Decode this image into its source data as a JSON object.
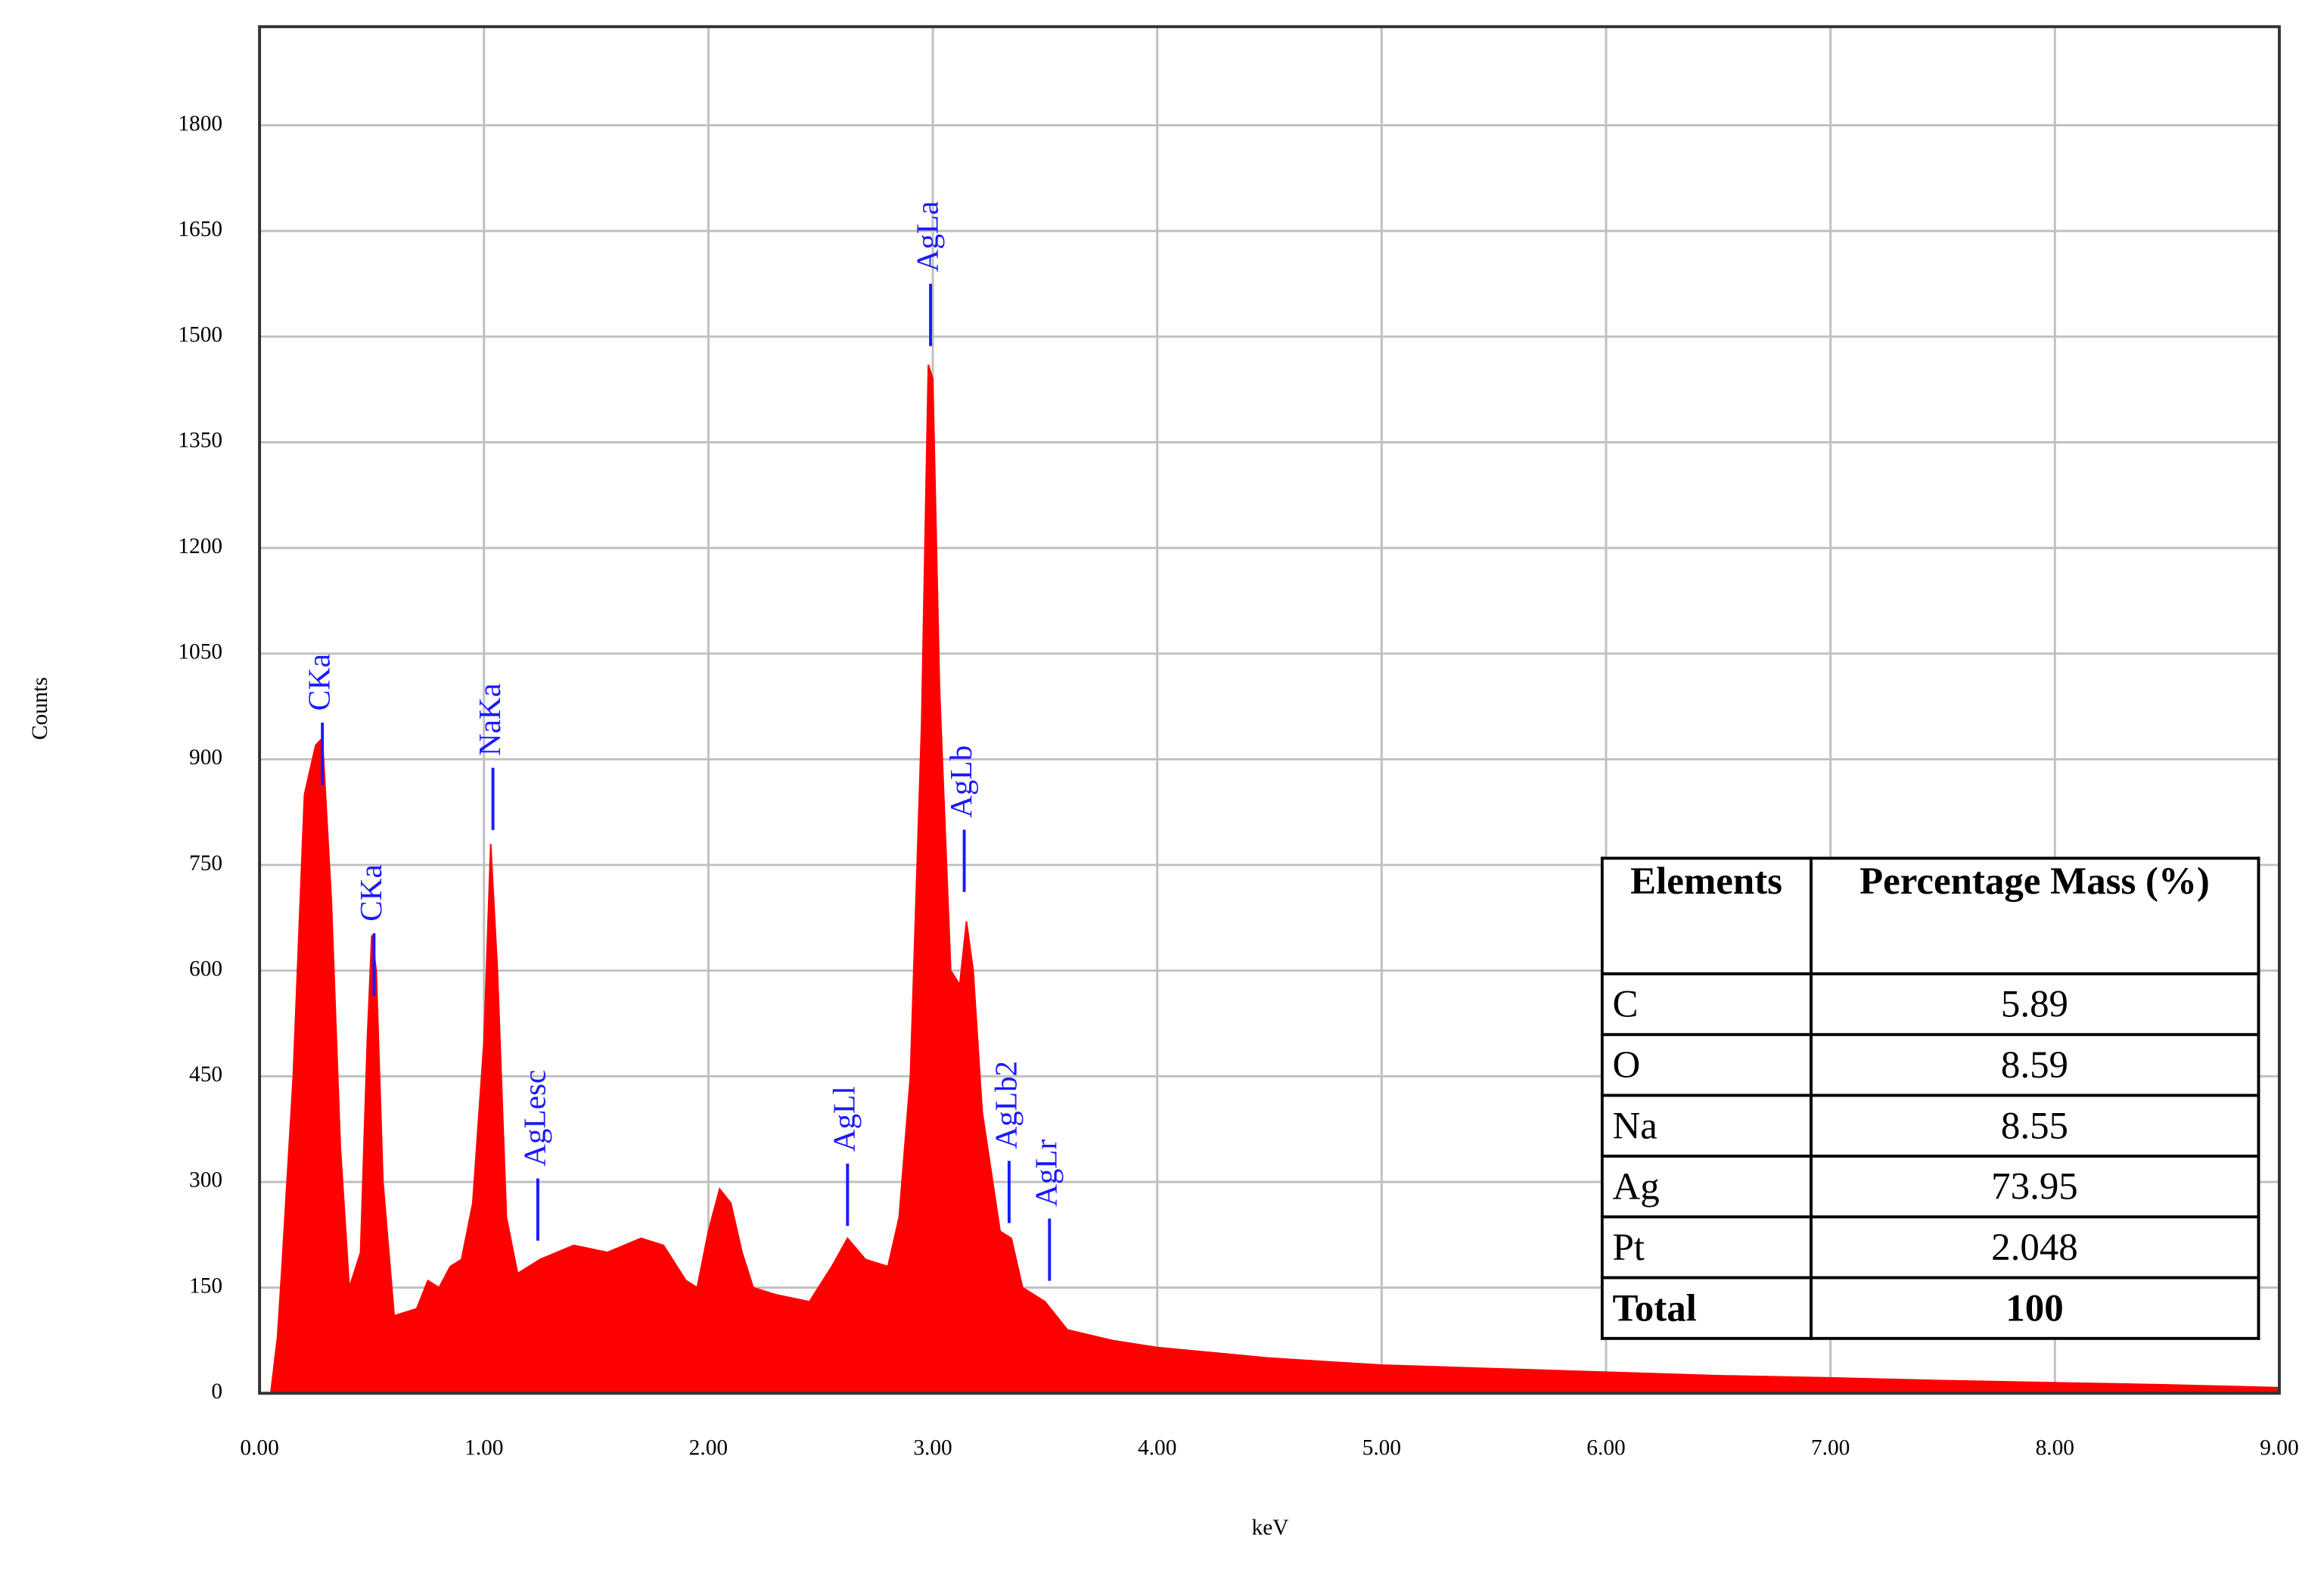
{
  "chart_data": {
    "type": "area",
    "x_label": "keV",
    "y_label": "Counts",
    "color": "#ff0000",
    "grid": true,
    "xlim": [
      0,
      9
    ],
    "ylim": [
      0,
      1940
    ],
    "xticks": [
      {
        "value": 0,
        "label": "0.00"
      },
      {
        "value": 1,
        "label": "1.00"
      },
      {
        "value": 2,
        "label": "2.00"
      },
      {
        "value": 3,
        "label": "3.00"
      },
      {
        "value": 4,
        "label": "4.00"
      },
      {
        "value": 5,
        "label": "5.00"
      },
      {
        "value": 6,
        "label": "6.00"
      },
      {
        "value": 7,
        "label": "7.00"
      },
      {
        "value": 8,
        "label": "8.00"
      },
      {
        "value": 9,
        "label": "9.00"
      }
    ],
    "yticks": [
      0,
      150,
      300,
      450,
      600,
      750,
      900,
      1050,
      1200,
      1350,
      1500,
      1650,
      1800
    ],
    "x": [
      0.0,
      0.05,
      0.08,
      0.1,
      0.15,
      0.2,
      0.25,
      0.28,
      0.32,
      0.36,
      0.4,
      0.45,
      0.48,
      0.5,
      0.52,
      0.55,
      0.6,
      0.7,
      0.75,
      0.8,
      0.85,
      0.9,
      0.95,
      1.0,
      1.03,
      1.06,
      1.1,
      1.15,
      1.25,
      1.4,
      1.55,
      1.7,
      1.8,
      1.9,
      1.95,
      2.0,
      2.05,
      2.1,
      2.15,
      2.2,
      2.3,
      2.45,
      2.55,
      2.62,
      2.7,
      2.8,
      2.85,
      2.9,
      2.95,
      2.98,
      3.0,
      3.03,
      3.08,
      3.12,
      3.15,
      3.18,
      3.22,
      3.3,
      3.35,
      3.4,
      3.5,
      3.6,
      3.8,
      4.0,
      4.5,
      5.0,
      5.5,
      6.0,
      6.5,
      7.0,
      7.5,
      8.0,
      8.5,
      9.0
    ],
    "values": [
      0,
      0,
      80,
      180,
      450,
      850,
      920,
      930,
      700,
      350,
      150,
      200,
      500,
      650,
      600,
      300,
      110,
      120,
      160,
      150,
      180,
      190,
      270,
      500,
      780,
      600,
      250,
      170,
      190,
      210,
      200,
      220,
      210,
      160,
      150,
      230,
      290,
      270,
      200,
      150,
      140,
      130,
      180,
      220,
      190,
      180,
      250,
      450,
      950,
      1460,
      1440,
      1000,
      600,
      580,
      670,
      600,
      400,
      230,
      220,
      150,
      130,
      90,
      75,
      65,
      50,
      40,
      35,
      30,
      25,
      22,
      18,
      15,
      12,
      8
    ],
    "annotations": [
      {
        "text": "CKa",
        "x": 0.28,
        "y": 952
      },
      {
        "text": "CKa",
        "x": 0.51,
        "y": 653
      },
      {
        "text": "NaKa",
        "x": 1.04,
        "y": 888
      },
      {
        "text": "AgLesc",
        "x": 1.24,
        "y": 305
      },
      {
        "text": "AgLl",
        "x": 2.62,
        "y": 326
      },
      {
        "text": "AgLa",
        "x": 2.99,
        "y": 1575
      },
      {
        "text": "AgLb",
        "x": 3.14,
        "y": 800
      },
      {
        "text": "AgLb2",
        "x": 3.34,
        "y": 330
      },
      {
        "text": "AgLr",
        "x": 3.52,
        "y": 248
      }
    ],
    "table": {
      "header": [
        "Elements",
        "Percentage Mass (%)"
      ],
      "rows": [
        [
          "C",
          "5.89"
        ],
        [
          "O",
          "8.59"
        ],
        [
          "Na",
          "8.55"
        ],
        [
          "Ag",
          "73.95"
        ],
        [
          "Pt",
          "2.048"
        ],
        [
          "Total",
          "100"
        ]
      ]
    }
  }
}
